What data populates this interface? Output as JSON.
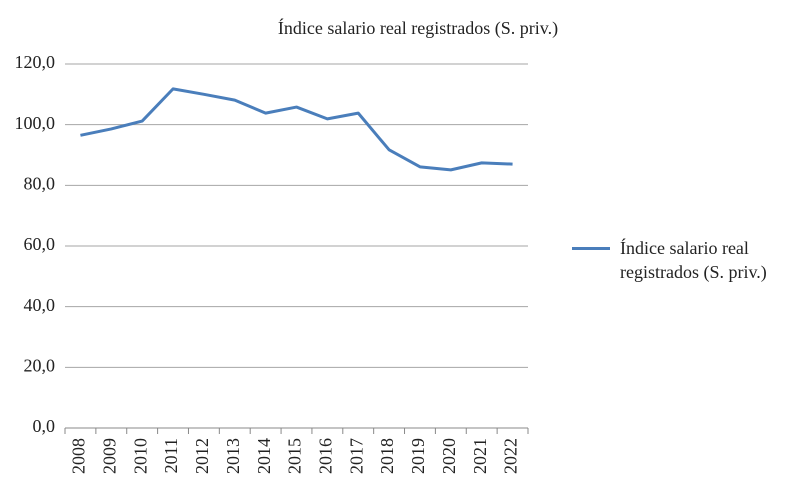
{
  "chart_data": {
    "type": "line",
    "title": "Índice salario real registrados (S. priv.)",
    "categories": [
      "2008",
      "2009",
      "2010",
      "2011",
      "2012",
      "2013",
      "2014",
      "2015",
      "2016",
      "2017",
      "2018",
      "2019",
      "2020",
      "2021",
      "2022"
    ],
    "series": [
      {
        "name": "Índice salario real registrados (S. priv.)",
        "color": "#4a7ebb",
        "values": [
          96.5,
          98.6,
          101.2,
          111.8,
          110.0,
          108.1,
          103.8,
          105.8,
          101.9,
          103.8,
          91.7,
          86.1,
          85.1,
          87.4,
          87.0
        ]
      }
    ],
    "ylim": [
      0,
      120
    ],
    "yticks": [
      {
        "value": 0,
        "label": "0,0"
      },
      {
        "value": 20,
        "label": "20,0"
      },
      {
        "value": 40,
        "label": "40,0"
      },
      {
        "value": 60,
        "label": "60,0"
      },
      {
        "value": 80,
        "label": "80,0"
      },
      {
        "value": 100,
        "label": "100,0"
      },
      {
        "value": 120,
        "label": "120,0"
      }
    ],
    "grid": true,
    "legend": "right"
  }
}
